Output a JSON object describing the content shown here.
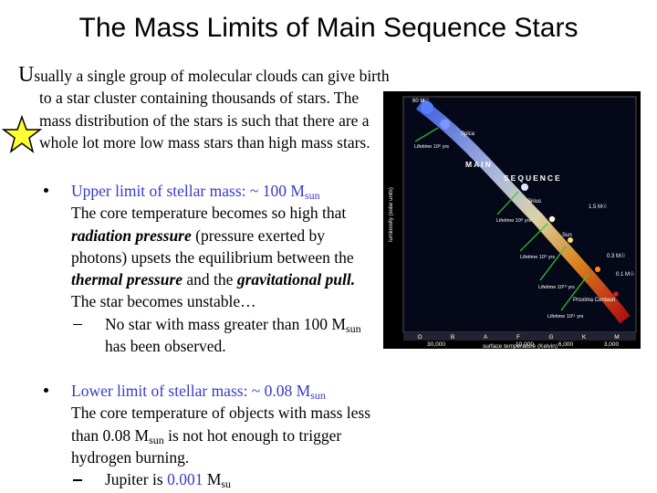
{
  "title": "The Mass Limits of Main Sequence Stars",
  "intro": {
    "initial": "U",
    "text": "sually a single group of molecular clouds can give birth to a star cluster containing thousands of stars. The mass distribution of the stars is such that there are a whole lot more low mass stars than high mass stars."
  },
  "bullets": [
    {
      "lead": [
        "Upper limit of stellar mass: ~ 100 M",
        "sun"
      ],
      "body": [
        "The core temperature becomes so high that ",
        "radiation pressure",
        " (pressure exerted by photons) upsets the equilibrium between the ",
        "thermal pressure",
        " and the ",
        "gravitational pull.",
        " The star becomes unstable…"
      ],
      "sub": [
        "No star with mass greater than 100 M",
        "sun",
        " has been observed."
      ]
    },
    {
      "lead": [
        "Lower limit of stellar mass: ~ 0.08 M",
        "sun"
      ],
      "body": [
        "The core temperature of objects with mass less than 0.08 M",
        "sun",
        " is not hot enough to trigger hydrogen burning."
      ],
      "sub": [
        "Jupiter is ",
        "0.001",
        " M",
        "su"
      ]
    }
  ],
  "diagram": {
    "y_axis": "luminosity (solar units)",
    "x_axis": "surface temperature (Kelvin)",
    "classes": [
      "O",
      "B",
      "A",
      "F",
      "G",
      "K",
      "M"
    ],
    "temperatures": [
      "30,000",
      "10,000",
      "6,000",
      "3,000"
    ],
    "band": [
      "MAIN",
      "SEQUENCE"
    ],
    "stars": [
      "60 M☉",
      "Spica",
      "Sirius",
      "Sun",
      "Proxima Centauri",
      "1.5 M☉",
      "0.3 M☉",
      "0.1 M☉"
    ],
    "lifetimes": [
      "Lifetime 10⁶ yrs",
      "Lifetime 10⁸ yrs",
      "Lifetime 10⁹ yrs",
      "Lifetime 10¹⁰ yrs",
      "Lifetime 10¹¹ yrs"
    ]
  }
}
